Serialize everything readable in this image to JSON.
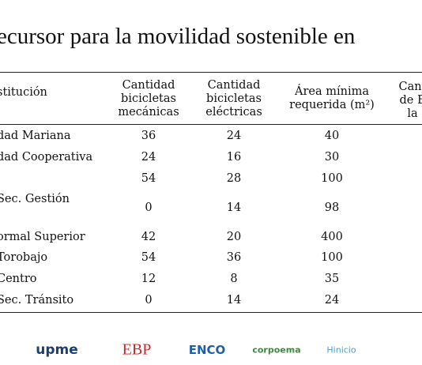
{
  "header": {
    "title": "ecursor para la movilidad sostenible en"
  },
  "table": {
    "headers": [
      [
        "stitución"
      ],
      [
        "Cantidad",
        "bicicletas",
        "mecánicas"
      ],
      [
        "Cantidad",
        "bicicletas",
        "eléctricas"
      ],
      [
        "Área mínima",
        "requerida (m²)"
      ],
      [
        "Cant",
        "de E",
        "la"
      ]
    ],
    "rows": [
      [
        "dad Mariana",
        36,
        24,
        40
      ],
      [
        "dad Cooperativa",
        24,
        16,
        30
      ],
      [
        null,
        54,
        28,
        100
      ],
      [
        "Sec. Gestión",
        0,
        14,
        98
      ],
      [
        "ormal Superior",
        42,
        20,
        400
      ],
      [
        "Torobajo",
        54,
        36,
        100
      ],
      [
        "Centro",
        12,
        8,
        35
      ],
      [
        "Sec. Tránsito",
        0,
        14,
        24
      ]
    ]
  },
  "footer": {
    "logos": [
      "upme",
      "EBP",
      "ENCO",
      "corpoema",
      "Hinicio"
    ]
  }
}
